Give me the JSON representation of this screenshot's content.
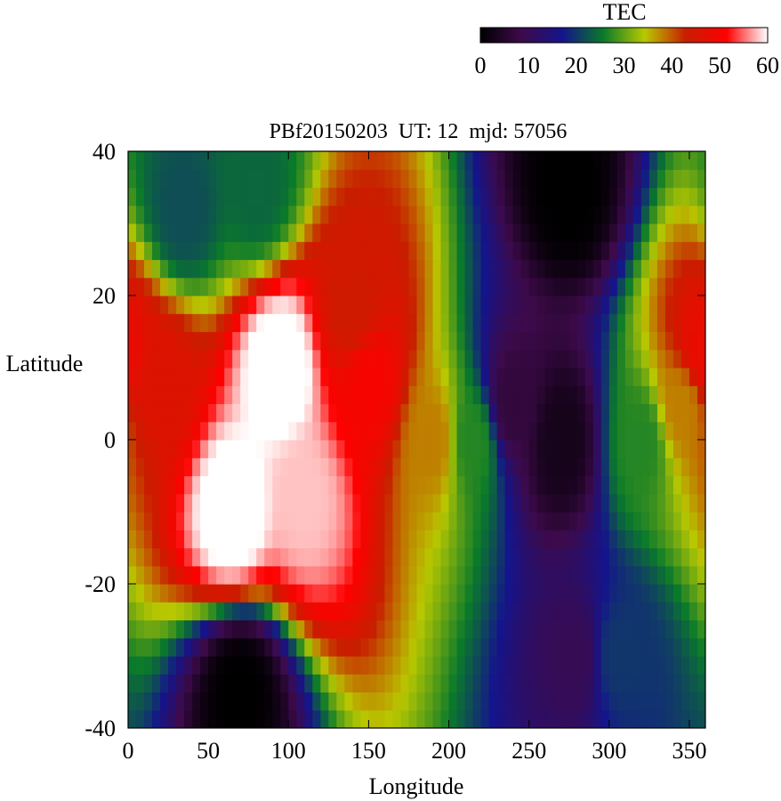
{
  "chart_data": {
    "type": "heatmap",
    "title": "PBf20150203  UT: 12  mjd: 57056",
    "xlabel": "Longitude",
    "ylabel": "Latitude",
    "xlim": [
      0,
      360
    ],
    "ylim": [
      -40,
      40
    ],
    "x_ticks": [
      "0",
      "50",
      "100",
      "150",
      "200",
      "250",
      "300",
      "350"
    ],
    "y_ticks": [
      "40",
      "20",
      "0",
      "-20",
      "-40"
    ],
    "colorbar": {
      "label": "TEC",
      "range": [
        0,
        60
      ],
      "ticks": [
        "0",
        "10",
        "20",
        "30",
        "40",
        "50",
        "60"
      ],
      "colors": [
        "#000000",
        "#3d0a4a",
        "#14148c",
        "#0a7a2a",
        "#b8c800",
        "#c81e00",
        "#ff0000",
        "#ffffff"
      ]
    },
    "grid": false,
    "cell_size_deg": [
      5,
      2.5
    ],
    "feature_points": [
      {
        "lon": 95,
        "lat": 10,
        "tec": 62
      },
      {
        "lon": 65,
        "lat": -10,
        "tec": 62
      },
      {
        "lon": 110,
        "lat": -8,
        "tec": 58
      },
      {
        "lon": 150,
        "lat": 8,
        "tec": 50
      },
      {
        "lon": 20,
        "lat": 8,
        "tec": 46
      },
      {
        "lon": 140,
        "lat": 18,
        "tec": 44
      },
      {
        "lon": 190,
        "lat": 0,
        "tec": 38
      },
      {
        "lon": 215,
        "lat": 0,
        "tec": 27
      },
      {
        "lon": 240,
        "lat": 5,
        "tec": 7
      },
      {
        "lon": 270,
        "lat": 0,
        "tec": 3
      },
      {
        "lon": 280,
        "lat": -30,
        "tec": 10
      },
      {
        "lon": 305,
        "lat": -30,
        "tec": 20
      },
      {
        "lon": 320,
        "lat": 0,
        "tec": 27
      },
      {
        "lon": 345,
        "lat": 5,
        "tec": 38
      },
      {
        "lon": 358,
        "lat": 12,
        "tec": 48
      },
      {
        "lon": 35,
        "lat": 32,
        "tec": 22
      },
      {
        "lon": 80,
        "lat": 35,
        "tec": 24
      },
      {
        "lon": 70,
        "lat": -35,
        "tec": 0
      },
      {
        "lon": 275,
        "lat": 35,
        "tec": 0
      }
    ]
  }
}
